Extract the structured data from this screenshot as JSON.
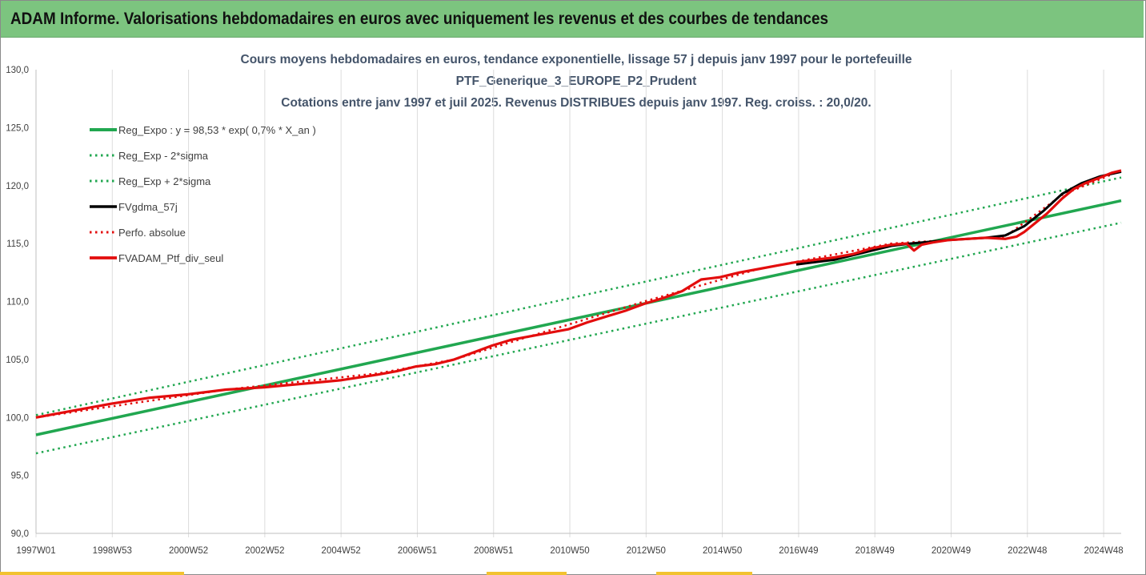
{
  "header": {
    "title": "ADAM Informe. Valorisations hebdomadaires en euros avec uniquement les revenus et des courbes de tendances"
  },
  "chart_data": {
    "type": "line",
    "title": [
      "Cours moyens hebdomadaires  en euros, tendance exponentielle, lissage 57 j depuis janv 1997 pour le portefeuille",
      "PTF_Generique_3_EUROPE_P2_Prudent",
      "Cotations  entre janv 1997 et juil 2025. Revenus DISTRIBUES depuis janv 1997. Reg. croiss. : 20,0/20."
    ],
    "xlabel": "",
    "ylabel": "",
    "ylim": [
      90,
      130
    ],
    "xlim": [
      1997.0,
      2025.55
    ],
    "y_ticks": [
      "130,0",
      "125,0",
      "120,0",
      "115,0",
      "110,0",
      "105,0",
      "100,0",
      "95,0",
      "90,0"
    ],
    "x_ticks": [
      "1997W01",
      "1998W53",
      "2000W52",
      "2002W52",
      "2004W52",
      "2006W51",
      "2008W51",
      "2010W50",
      "2012W50",
      "2014W50",
      "2016W49",
      "2018W49",
      "2020W49",
      "2022W48",
      "2024W48"
    ],
    "grid": "vertical",
    "legend_position": "top-left",
    "colors": {
      "green": "#21a750",
      "red": "#e30d0d",
      "black": "#000000"
    },
    "series": [
      {
        "name": "Reg_Expo : y = 98,53 * exp( 0,7% *  X_an )",
        "style": "solid-green",
        "x": [
          1997.0,
          2025.55
        ],
        "y": [
          98.5,
          118.7
        ]
      },
      {
        "name": "Reg_Exp - 2*sigma",
        "style": "dotted-green",
        "x": [
          1997.0,
          2025.55
        ],
        "y": [
          96.9,
          116.8
        ]
      },
      {
        "name": "Reg_Exp + 2*sigma",
        "style": "dotted-green",
        "x": [
          1997.0,
          2025.55
        ],
        "y": [
          100.2,
          120.7
        ]
      },
      {
        "name": "FVgdma_57j",
        "style": "solid-black",
        "x": [
          2017.0,
          2018.0,
          2019.0,
          2019.5,
          2020.0,
          2021.0,
          2022.0,
          2022.5,
          2023.0,
          2023.5,
          2024.0,
          2024.5,
          2025.0,
          2025.55
        ],
        "y": [
          113.2,
          113.6,
          114.4,
          114.8,
          115.0,
          115.3,
          115.5,
          115.7,
          116.5,
          117.8,
          119.3,
          120.2,
          120.8,
          121.2
        ]
      },
      {
        "name": "Perfo. absolue",
        "style": "dotted-red",
        "x": [
          1997.0,
          2002.0,
          2006.0,
          2008.0,
          2010.0,
          2013.0,
          2016.0,
          2019.5,
          2022.5,
          2024.0,
          2025.55
        ],
        "y": [
          100.0,
          102.4,
          103.8,
          105.0,
          107.0,
          110.0,
          112.8,
          115.0,
          115.6,
          119.2,
          121.3
        ]
      },
      {
        "name": "FVADAM_Ptf_div_seul",
        "style": "solid-red",
        "x": [
          1997.0,
          1998.0,
          1999.0,
          2000.0,
          2001.0,
          2002.0,
          2003.0,
          2004.0,
          2005.0,
          2006.0,
          2006.5,
          2007.0,
          2007.5,
          2008.0,
          2008.5,
          2009.0,
          2009.5,
          2010.0,
          2010.5,
          2011.0,
          2011.5,
          2012.0,
          2012.5,
          2013.0,
          2013.5,
          2014.0,
          2014.3,
          2014.5,
          2015.0,
          2015.5,
          2016.0,
          2016.5,
          2017.0,
          2017.5,
          2018.0,
          2018.5,
          2019.0,
          2019.5,
          2019.9,
          2020.1,
          2020.3,
          2020.6,
          2021.0,
          2021.5,
          2022.0,
          2022.5,
          2022.8,
          2023.0,
          2023.3,
          2023.6,
          2024.0,
          2024.3,
          2024.6,
          2025.0,
          2025.3,
          2025.55
        ],
        "y": [
          100.0,
          100.6,
          101.2,
          101.7,
          102.0,
          102.4,
          102.6,
          102.9,
          103.2,
          103.7,
          104.0,
          104.4,
          104.6,
          105.0,
          105.6,
          106.2,
          106.7,
          107.0,
          107.3,
          107.6,
          108.2,
          108.7,
          109.2,
          109.8,
          110.3,
          110.9,
          111.5,
          111.9,
          112.1,
          112.5,
          112.8,
          113.1,
          113.4,
          113.6,
          113.8,
          114.1,
          114.6,
          114.9,
          115.0,
          114.4,
          114.9,
          115.1,
          115.3,
          115.4,
          115.5,
          115.4,
          115.6,
          116.0,
          116.8,
          117.6,
          118.9,
          119.7,
          120.2,
          120.7,
          121.1,
          121.3
        ]
      }
    ]
  }
}
